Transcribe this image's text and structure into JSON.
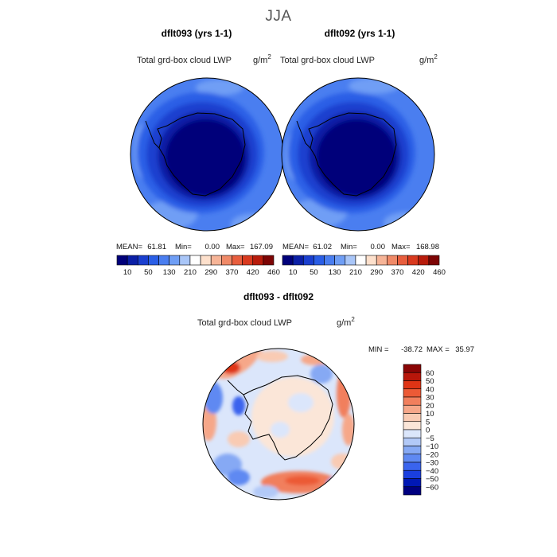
{
  "figure": {
    "title": "JJA"
  },
  "panels": [
    {
      "title": "dflt093 (yrs 1-1)",
      "variable": "Total grd-box cloud LWP",
      "units": "g/m",
      "units_exp": "2",
      "stats": {
        "mean_label": "MEAN=",
        "mean": "61.81",
        "min_label": "Min=",
        "min": "0.00",
        "max_label": "Max=",
        "max": "167.09"
      }
    },
    {
      "title": "dflt092 (yrs 1-1)",
      "variable": "Total grd-box cloud LWP",
      "units": "g/m",
      "units_exp": "2",
      "stats": {
        "mean_label": "MEAN=",
        "mean": "61.02",
        "min_label": "Min=",
        "min": "0.00",
        "max_label": "Max=",
        "max": "168.98"
      }
    }
  ],
  "absolute_colorbar": {
    "colors": [
      "#00007a",
      "#0b1fa6",
      "#1a3fcf",
      "#2a5ee6",
      "#4a7ef0",
      "#6f9ef5",
      "#a9c6f8",
      "#ffffff",
      "#fde0cc",
      "#f6b497",
      "#f08a68",
      "#e85e3e",
      "#d93a1f",
      "#b81c0c",
      "#7d0505"
    ],
    "ticks": [
      "10",
      "50",
      "130",
      "210",
      "290",
      "370",
      "420",
      "460"
    ]
  },
  "diff_panel": {
    "title": "dflt093 - dflt092",
    "variable": "Total grd-box cloud LWP",
    "units": "g/m",
    "units_exp": "2",
    "stats": {
      "min_label": "MIN =",
      "min": "-38.72",
      "max_label": "MAX =",
      "max": "35.97"
    }
  },
  "diff_colorbar": {
    "colors": [
      "#000080",
      "#0018b5",
      "#1a3fdf",
      "#3a64ee",
      "#5f89f2",
      "#86a9f4",
      "#b2c9f7",
      "#dbe6fb",
      "#fbe6d8",
      "#f9cbb3",
      "#f6a789",
      "#f17f5d",
      "#ec5a36",
      "#df3415",
      "#b8160a",
      "#8a0505"
    ],
    "ticks": [
      "60",
      "50",
      "40",
      "30",
      "20",
      "10",
      "5",
      "0",
      "−5",
      "−10",
      "−20",
      "−30",
      "−40",
      "−50",
      "−60"
    ]
  },
  "chart_data": [
    {
      "type": "heatmap",
      "projection": "south-polar-stereographic",
      "title": "dflt093 (yrs 1-1)",
      "variable": "Total grd-box cloud LWP",
      "units": "g/m^2",
      "mean": 61.81,
      "min": 0.0,
      "max": 167.09,
      "levels": [
        10,
        50,
        130,
        210,
        290,
        370,
        420,
        460
      ],
      "pattern": "low values (~10-50) over Antarctica, increasing to ~50-130 over the Southern Ocean rim"
    },
    {
      "type": "heatmap",
      "projection": "south-polar-stereographic",
      "title": "dflt092 (yrs 1-1)",
      "variable": "Total grd-box cloud LWP",
      "units": "g/m^2",
      "mean": 61.02,
      "min": 0.0,
      "max": 168.98,
      "levels": [
        10,
        50,
        130,
        210,
        290,
        370,
        420,
        460
      ],
      "pattern": "low values (~10-50) over Antarctica, increasing to ~50-130 over the Southern Ocean rim"
    },
    {
      "type": "heatmap",
      "projection": "south-polar-stereographic",
      "title": "dflt093 - dflt092",
      "variable": "Total grd-box cloud LWP",
      "units": "g/m^2",
      "min": -38.72,
      "max": 35.97,
      "levels": [
        -60,
        -50,
        -40,
        -30,
        -20,
        -10,
        -5,
        0,
        5,
        10,
        20,
        30,
        40,
        50,
        60
      ],
      "pattern": "near-zero over Antarctica, mixed positive (red) and negative (blue) anomalies over the ocean"
    }
  ]
}
